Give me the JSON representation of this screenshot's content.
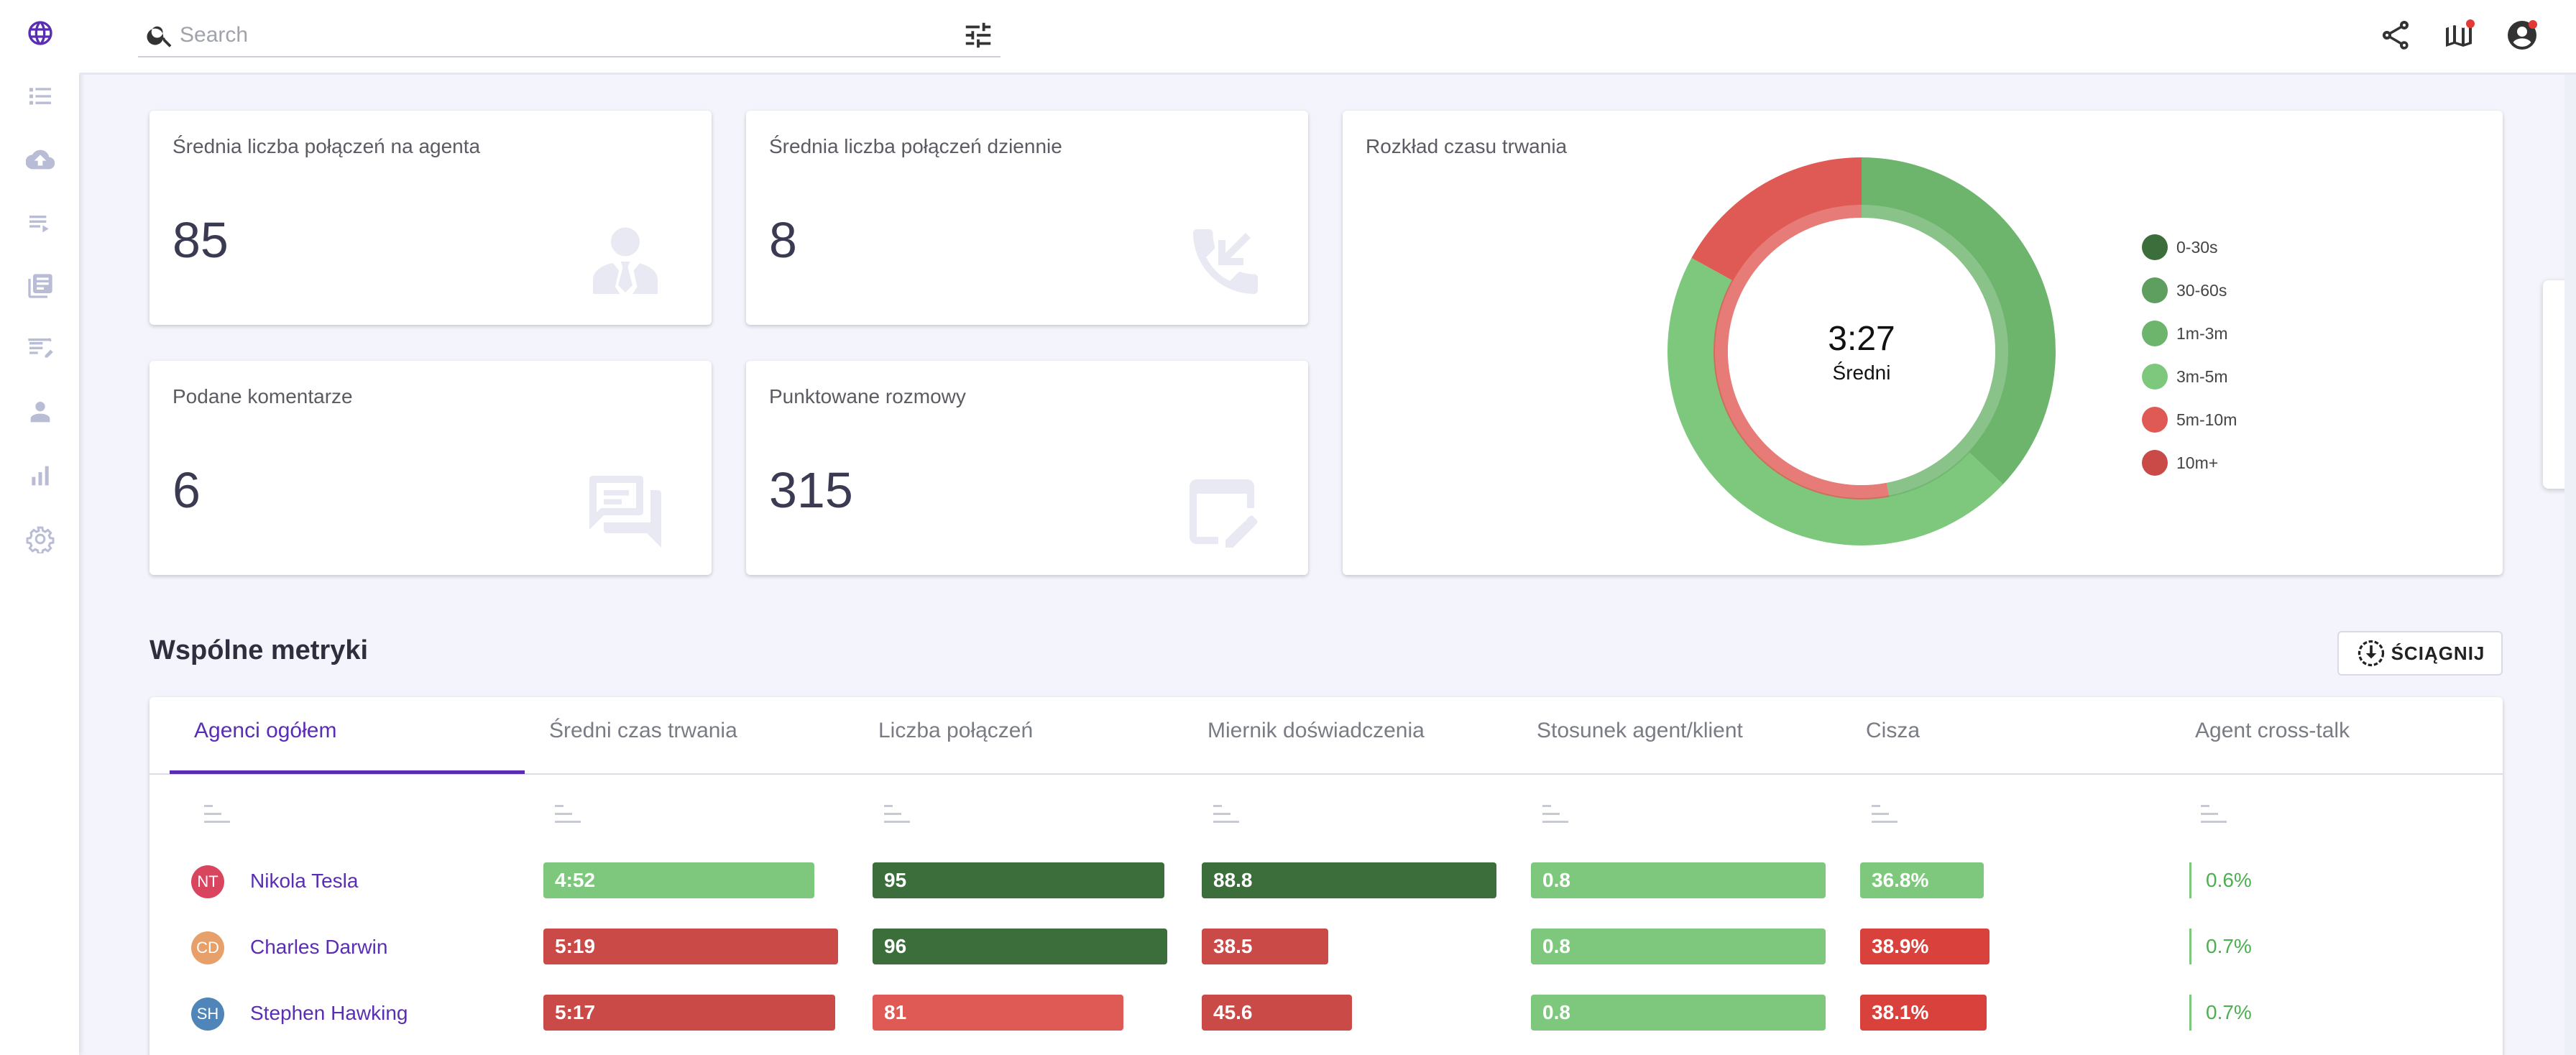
{
  "search": {
    "placeholder": "Search"
  },
  "sidebar": {
    "icons": [
      "globe-icon",
      "list-icon",
      "cloud-upload-icon",
      "playlist-icon",
      "library-icon",
      "note-edit-icon",
      "agent-icon",
      "bar-chart-icon",
      "settings-icon"
    ]
  },
  "topbar": {
    "icons": [
      "share-icon",
      "map-book-icon",
      "account-icon"
    ]
  },
  "stats": [
    {
      "label": "Średnia liczba połączeń na agenta",
      "value": "85",
      "icon": "agent-person-icon"
    },
    {
      "label": "Średnia liczba połączeń dziennie",
      "value": "8",
      "icon": "incoming-call-icon"
    },
    {
      "label": "Podane komentarze",
      "value": "6",
      "icon": "comments-icon"
    },
    {
      "label": "Punktowane rozmowy",
      "value": "315",
      "icon": "edit-square-icon"
    }
  ],
  "duration": {
    "title": "Rozkład czasu trwania",
    "center_value": "3:27",
    "center_label": "Średni"
  },
  "chart_data": {
    "type": "pie",
    "title": "Rozkład czasu trwania",
    "categories": [
      "0-30s",
      "30-60s",
      "1m-3m",
      "3m-5m",
      "5m-10m",
      "10m+"
    ],
    "outer_ring": [
      0,
      0,
      37,
      46,
      17,
      0
    ],
    "inner_ring": [
      0,
      0,
      47,
      0,
      53,
      0
    ],
    "colors": [
      "#3c6e3c",
      "#5e9e5e",
      "#6db46d",
      "#7ec87e",
      "#e05a55",
      "#c94a47"
    ],
    "center_value": "3:27",
    "center_label": "Średni"
  },
  "metrics": {
    "title": "Wspólne metryki",
    "download_label": "ŚCIĄGNIJ",
    "tabs": [
      "Agenci ogółem",
      "Średni czas trwania",
      "Liczba połączeń",
      "Miernik doświadczenia",
      "Stosunek agent/klient",
      "Cisza",
      "Agent cross-talk"
    ],
    "rows": [
      {
        "initials": "NT",
        "name": "Nikola Tesla",
        "avatar_color": "#d9455f",
        "duration": "4:52",
        "duration_fill": 0.92,
        "duration_color": "#7ec87e",
        "calls": "95",
        "calls_fill": 0.99,
        "calls_color": "#3c6e3c",
        "experience": "88.8",
        "experience_fill": 1.0,
        "experience_color": "#3c6e3c",
        "ratio": "0.8",
        "ratio_fill": 1.0,
        "ratio_color": "#7ec87e",
        "silence": "36.8%",
        "silence_fill": 0.42,
        "silence_color": "#7ec87e",
        "crosstalk": "0.6%"
      },
      {
        "initials": "CD",
        "name": "Charles Darwin",
        "avatar_color": "#e8a06a",
        "duration": "5:19",
        "duration_fill": 1.0,
        "duration_color": "#c94a47",
        "calls": "96",
        "calls_fill": 1.0,
        "calls_color": "#3c6e3c",
        "experience": "38.5",
        "experience_fill": 0.43,
        "experience_color": "#c94a47",
        "ratio": "0.8",
        "ratio_fill": 1.0,
        "ratio_color": "#7ec87e",
        "silence": "38.9%",
        "silence_fill": 0.44,
        "silence_color": "#d9413d",
        "crosstalk": "0.7%"
      },
      {
        "initials": "SH",
        "name": "Stephen Hawking",
        "avatar_color": "#4f85b8",
        "duration": "5:17",
        "duration_fill": 0.99,
        "duration_color": "#c94a47",
        "calls": "81",
        "calls_fill": 0.85,
        "calls_color": "#e05a55",
        "experience": "45.6",
        "experience_fill": 0.51,
        "experience_color": "#c94a47",
        "ratio": "0.8",
        "ratio_fill": 1.0,
        "ratio_color": "#7ec87e",
        "silence": "38.1%",
        "silence_fill": 0.43,
        "silence_color": "#d9413d",
        "crosstalk": "0.7%"
      }
    ]
  }
}
